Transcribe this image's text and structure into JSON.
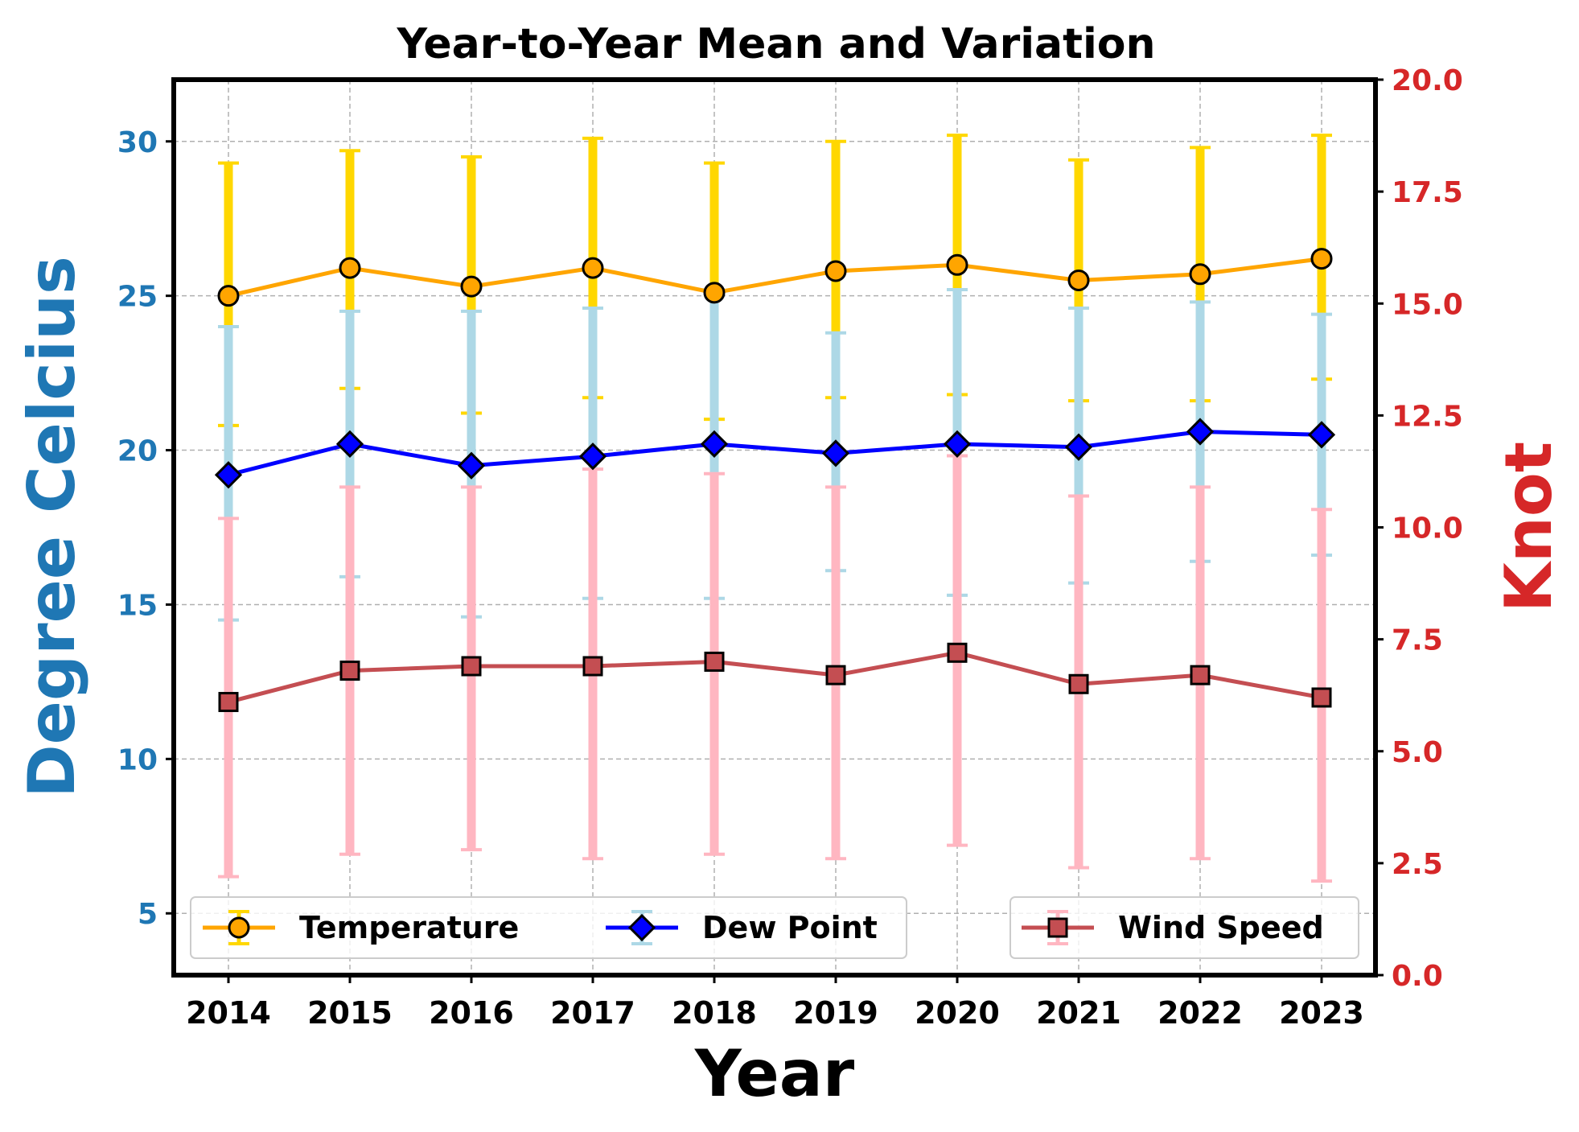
{
  "chart_data": {
    "type": "line",
    "title": "Year-to-Year Mean and Variation",
    "xlabel": "Year",
    "ylabel_left": "Degree Celcius",
    "ylabel_right": "Knot",
    "categories": [
      "2014",
      "2015",
      "2016",
      "2017",
      "2018",
      "2019",
      "2020",
      "2021",
      "2022",
      "2023"
    ],
    "ylim_left": [
      3,
      32
    ],
    "ylim_right": [
      0,
      20
    ],
    "yticks_left": [
      5,
      10,
      15,
      20,
      25,
      30
    ],
    "yticks_right": [
      "0.0",
      "2.5",
      "5.0",
      "7.5",
      "10.0",
      "12.5",
      "15.0",
      "17.5",
      "20.0"
    ],
    "grid": true,
    "colors": {
      "left_axis": "#1f77b4",
      "right_axis": "#d62728",
      "grid": "#b0b0b0"
    },
    "series": [
      {
        "name": "Temperature",
        "axis": "left",
        "marker": "circle",
        "line_color": "#ffa500",
        "marker_color": "#ffa500",
        "err_color": "#ffd700",
        "values": [
          25.0,
          25.9,
          25.3,
          25.9,
          25.1,
          25.8,
          26.0,
          25.5,
          25.7,
          26.2
        ],
        "err_low": [
          20.8,
          22.0,
          21.2,
          21.7,
          21.0,
          21.7,
          21.8,
          21.6,
          21.6,
          22.3
        ],
        "err_high": [
          29.3,
          29.7,
          29.5,
          30.1,
          29.3,
          30.0,
          30.2,
          29.4,
          29.8,
          30.2
        ]
      },
      {
        "name": "Dew Point",
        "axis": "left",
        "marker": "diamond",
        "line_color": "#0000ff",
        "marker_color": "#0000ff",
        "err_color": "#add8e6",
        "values": [
          19.2,
          20.2,
          19.5,
          19.8,
          20.2,
          19.9,
          20.2,
          20.1,
          20.6,
          20.5
        ],
        "err_low": [
          14.5,
          15.9,
          14.6,
          15.2,
          15.2,
          16.1,
          15.3,
          15.7,
          16.4,
          16.6
        ],
        "err_high": [
          24.0,
          24.5,
          24.5,
          24.6,
          25.2,
          23.8,
          25.2,
          24.6,
          24.8,
          24.4
        ]
      },
      {
        "name": "Wind Speed",
        "axis": "right",
        "marker": "square",
        "line_color": "#c44e52",
        "marker_color": "#c44e52",
        "err_color": "#ffb6c1",
        "values": [
          6.1,
          6.8,
          6.9,
          6.9,
          7.0,
          6.7,
          7.2,
          6.5,
          6.7,
          6.2
        ],
        "err_low": [
          2.2,
          2.7,
          2.8,
          2.6,
          2.7,
          2.6,
          2.9,
          2.4,
          2.6,
          2.1
        ],
        "err_high": [
          10.2,
          10.9,
          10.9,
          11.3,
          11.2,
          10.9,
          11.6,
          10.7,
          10.9,
          10.4
        ]
      }
    ],
    "legends": [
      {
        "placement": "lower-left",
        "entries": [
          "Temperature",
          "Dew Point"
        ]
      },
      {
        "placement": "lower-right",
        "entries": [
          "Wind Speed"
        ]
      }
    ]
  }
}
